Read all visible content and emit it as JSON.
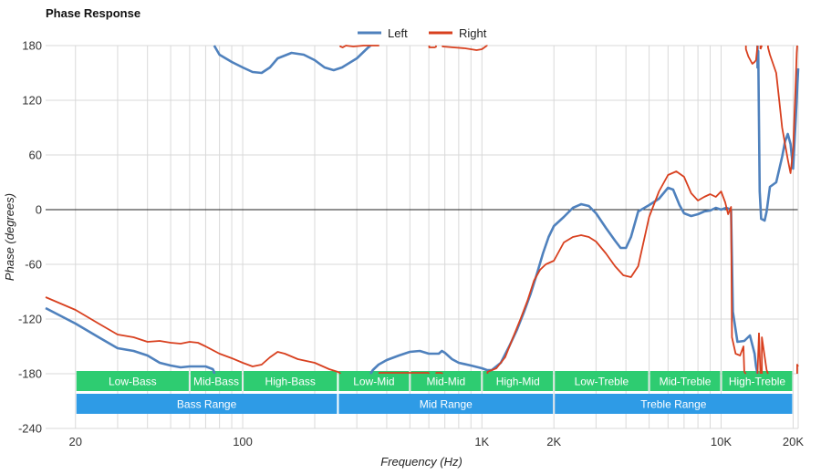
{
  "chart_data": {
    "type": "line",
    "title": "Phase Response",
    "xlabel": "Frequency (Hz)",
    "ylabel": "Phase (degrees)",
    "x_scale": "log",
    "xlim": [
      15,
      21000
    ],
    "ylim": [
      -240,
      180
    ],
    "y_ticks": [
      180,
      120,
      60,
      0,
      -60,
      -120,
      -180,
      -240
    ],
    "x_ticks": [
      {
        "value": 20,
        "label": "20"
      },
      {
        "value": 100,
        "label": "100"
      },
      {
        "value": 1000,
        "label": "1K"
      },
      {
        "value": 2000,
        "label": "2K"
      },
      {
        "value": 10000,
        "label": "10K"
      },
      {
        "value": 20000,
        "label": "20K"
      }
    ],
    "grid": true,
    "legend_position": "top-center",
    "series": [
      {
        "name": "Left",
        "color": "#4f81bd",
        "points": [
          [
            15,
            -108
          ],
          [
            20,
            -125
          ],
          [
            25,
            -140
          ],
          [
            30,
            -152
          ],
          [
            35,
            -155
          ],
          [
            40,
            -160
          ],
          [
            45,
            -168
          ],
          [
            50,
            -171
          ],
          [
            55,
            -173
          ],
          [
            60,
            -172
          ],
          [
            70,
            -172
          ],
          [
            75,
            -175
          ],
          [
            76,
            -178
          ],
          [
            76,
            180
          ],
          [
            80,
            170
          ],
          [
            90,
            162
          ],
          [
            100,
            156
          ],
          [
            110,
            151
          ],
          [
            120,
            150
          ],
          [
            130,
            156
          ],
          [
            140,
            166
          ],
          [
            160,
            172
          ],
          [
            180,
            170
          ],
          [
            200,
            164
          ],
          [
            220,
            156
          ],
          [
            240,
            153
          ],
          [
            260,
            156
          ],
          [
            300,
            166
          ],
          [
            335,
            178
          ],
          [
            340,
            179
          ],
          [
            342,
            -180
          ],
          [
            350,
            -176
          ],
          [
            370,
            -170
          ],
          [
            400,
            -165
          ],
          [
            450,
            -160
          ],
          [
            500,
            -156
          ],
          [
            550,
            -155
          ],
          [
            600,
            -158
          ],
          [
            660,
            -158
          ],
          [
            680,
            -155
          ],
          [
            700,
            -157
          ],
          [
            750,
            -164
          ],
          [
            800,
            -168
          ],
          [
            900,
            -171
          ],
          [
            1000,
            -174
          ],
          [
            1050,
            -176
          ],
          [
            1100,
            -176
          ],
          [
            1200,
            -168
          ],
          [
            1300,
            -150
          ],
          [
            1400,
            -132
          ],
          [
            1500,
            -112
          ],
          [
            1600,
            -92
          ],
          [
            1700,
            -70
          ],
          [
            1800,
            -48
          ],
          [
            1900,
            -30
          ],
          [
            2000,
            -18
          ],
          [
            2200,
            -8
          ],
          [
            2400,
            2
          ],
          [
            2600,
            6
          ],
          [
            2800,
            4
          ],
          [
            3000,
            -4
          ],
          [
            3300,
            -20
          ],
          [
            3600,
            -34
          ],
          [
            3800,
            -42
          ],
          [
            4000,
            -42
          ],
          [
            4200,
            -30
          ],
          [
            4500,
            -2
          ],
          [
            5000,
            5
          ],
          [
            5500,
            12
          ],
          [
            6000,
            24
          ],
          [
            6300,
            22
          ],
          [
            6700,
            5
          ],
          [
            7000,
            -4
          ],
          [
            7500,
            -7
          ],
          [
            8000,
            -5
          ],
          [
            8500,
            -2
          ],
          [
            9000,
            -1
          ],
          [
            9500,
            2
          ],
          [
            10000,
            0
          ],
          [
            10500,
            2
          ],
          [
            11000,
            0
          ],
          [
            11200,
            -112
          ],
          [
            11700,
            -145
          ],
          [
            12500,
            -144
          ],
          [
            13200,
            -138
          ],
          [
            13800,
            -158
          ],
          [
            14000,
            -172
          ],
          [
            14200,
            156
          ],
          [
            14300,
            174
          ],
          [
            14500,
            20
          ],
          [
            14700,
            -10
          ],
          [
            15200,
            -12
          ],
          [
            15500,
            -2
          ],
          [
            16000,
            25
          ],
          [
            17000,
            30
          ],
          [
            18000,
            58
          ],
          [
            18500,
            75
          ],
          [
            19000,
            83
          ],
          [
            19500,
            72
          ],
          [
            20000,
            45
          ],
          [
            20500,
            100
          ],
          [
            21000,
            155
          ]
        ]
      },
      {
        "name": "Right",
        "color": "#d8401f",
        "points": [
          [
            15,
            -96
          ],
          [
            20,
            -110
          ],
          [
            25,
            -125
          ],
          [
            30,
            -137
          ],
          [
            35,
            -140
          ],
          [
            40,
            -145
          ],
          [
            45,
            -144
          ],
          [
            50,
            -146
          ],
          [
            55,
            -147
          ],
          [
            60,
            -145
          ],
          [
            65,
            -146
          ],
          [
            70,
            -150
          ],
          [
            80,
            -158
          ],
          [
            90,
            -163
          ],
          [
            100,
            -168
          ],
          [
            110,
            -172
          ],
          [
            120,
            -170
          ],
          [
            130,
            -162
          ],
          [
            140,
            -156
          ],
          [
            150,
            -158
          ],
          [
            170,
            -164
          ],
          [
            200,
            -168
          ],
          [
            230,
            -175
          ],
          [
            250,
            -178
          ],
          [
            255,
            -179
          ],
          [
            256,
            179
          ],
          [
            262,
            178
          ],
          [
            270,
            180
          ],
          [
            290,
            179
          ],
          [
            320,
            180
          ],
          [
            340,
            180
          ],
          [
            370,
            180
          ],
          [
            372,
            -179
          ],
          [
            430,
            -179
          ],
          [
            600,
            -179
          ],
          [
            602,
            178
          ],
          [
            640,
            178
          ],
          [
            645,
            -179
          ],
          [
            680,
            -179
          ],
          [
            685,
            179
          ],
          [
            760,
            178
          ],
          [
            850,
            177
          ],
          [
            950,
            175
          ],
          [
            1000,
            176
          ],
          [
            1050,
            180
          ],
          [
            1055,
            -178
          ],
          [
            1150,
            -174
          ],
          [
            1250,
            -162
          ],
          [
            1350,
            -140
          ],
          [
            1450,
            -120
          ],
          [
            1550,
            -100
          ],
          [
            1650,
            -78
          ],
          [
            1750,
            -66
          ],
          [
            1850,
            -60
          ],
          [
            2000,
            -56
          ],
          [
            2200,
            -36
          ],
          [
            2400,
            -30
          ],
          [
            2600,
            -28
          ],
          [
            2800,
            -30
          ],
          [
            3000,
            -35
          ],
          [
            3300,
            -48
          ],
          [
            3600,
            -62
          ],
          [
            3900,
            -72
          ],
          [
            4200,
            -74
          ],
          [
            4500,
            -62
          ],
          [
            5000,
            -8
          ],
          [
            5500,
            20
          ],
          [
            6000,
            38
          ],
          [
            6500,
            42
          ],
          [
            7000,
            36
          ],
          [
            7500,
            18
          ],
          [
            8000,
            10
          ],
          [
            8500,
            14
          ],
          [
            9000,
            17
          ],
          [
            9500,
            14
          ],
          [
            10000,
            20
          ],
          [
            10400,
            8
          ],
          [
            10700,
            -5
          ],
          [
            11000,
            3
          ],
          [
            11100,
            -140
          ],
          [
            11500,
            -158
          ],
          [
            12000,
            -160
          ],
          [
            12400,
            -150
          ],
          [
            12500,
            -178
          ],
          [
            12700,
            176
          ],
          [
            13000,
            168
          ],
          [
            13500,
            160
          ],
          [
            13800,
            162
          ],
          [
            14000,
            164
          ],
          [
            14200,
            -180
          ],
          [
            14400,
            -135
          ],
          [
            14600,
            176
          ],
          [
            14800,
            -140
          ],
          [
            15500,
            -176
          ],
          [
            15700,
            178
          ],
          [
            16000,
            170
          ],
          [
            17000,
            150
          ],
          [
            17500,
            120
          ],
          [
            18000,
            90
          ],
          [
            19000,
            55
          ],
          [
            19500,
            40
          ],
          [
            20000,
            65
          ],
          [
            20500,
            140
          ],
          [
            20700,
            172
          ],
          [
            20800,
            -170
          ],
          [
            21000,
            -172
          ]
        ]
      }
    ],
    "ranges": [
      {
        "label": "Low-Bass",
        "from": 20,
        "to": 60,
        "row": 1,
        "color": "#2ecc71"
      },
      {
        "label": "Mid-Bass",
        "from": 60,
        "to": 100,
        "row": 1,
        "color": "#2ecc71"
      },
      {
        "label": "High-Bass",
        "from": 100,
        "to": 250,
        "row": 1,
        "color": "#2ecc71"
      },
      {
        "label": "Low-Mid",
        "from": 250,
        "to": 500,
        "row": 1,
        "color": "#2ecc71"
      },
      {
        "label": "Mid-Mid",
        "from": 500,
        "to": 1000,
        "row": 1,
        "color": "#2ecc71"
      },
      {
        "label": "High-Mid",
        "from": 1000,
        "to": 2000,
        "row": 1,
        "color": "#2ecc71"
      },
      {
        "label": "Low-Treble",
        "from": 2000,
        "to": 5000,
        "row": 1,
        "color": "#2ecc71"
      },
      {
        "label": "Mid-Treble",
        "from": 5000,
        "to": 10000,
        "row": 1,
        "color": "#2ecc71"
      },
      {
        "label": "High-Treble",
        "from": 10000,
        "to": 20000,
        "row": 1,
        "color": "#2ecc71"
      },
      {
        "label": "Bass Range",
        "from": 20,
        "to": 250,
        "row": 2,
        "color": "#2e9be6"
      },
      {
        "label": "Mid Range",
        "from": 250,
        "to": 2000,
        "row": 2,
        "color": "#2e9be6"
      },
      {
        "label": "Treble Range",
        "from": 2000,
        "to": 20000,
        "row": 2,
        "color": "#2e9be6"
      }
    ]
  }
}
